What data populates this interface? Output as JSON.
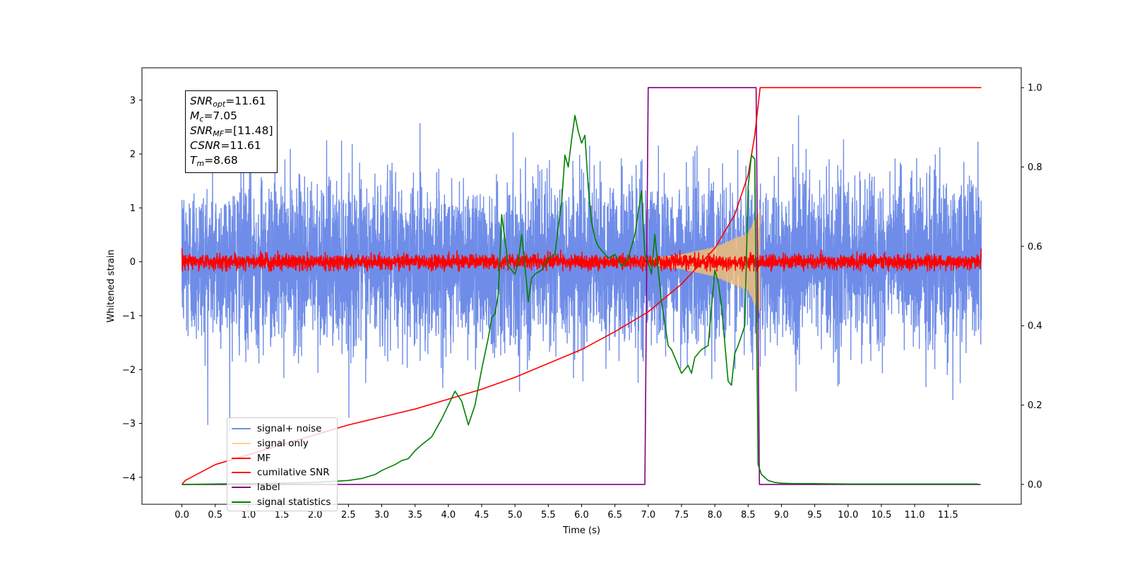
{
  "chart_data": {
    "type": "line",
    "xlabel": "Time (s)",
    "ylabel": "Whitened strain",
    "xlim": [
      -0.6,
      12.6
    ],
    "ylim": [
      -4.5,
      3.6
    ],
    "y2lim": [
      -0.05,
      1.05
    ],
    "x_ticks": [
      0.0,
      0.5,
      1.0,
      1.5,
      2.0,
      2.5,
      3.0,
      3.5,
      4.0,
      4.5,
      5.0,
      5.5,
      6.0,
      6.5,
      7.0,
      7.5,
      8.0,
      8.5,
      9.0,
      9.5,
      10.0,
      10.5,
      11.0,
      11.5
    ],
    "x_tick_labels": [
      "0.0",
      "0.5",
      "1.0",
      "1.5",
      "2.0",
      "2.5",
      "3.0",
      "3.5",
      "4.0",
      "4.5",
      "5.0",
      "5.5",
      "6.0",
      "6.5",
      "7.0",
      "7.5",
      "8.0",
      "8.5",
      "9.0",
      "9.5",
      "10.0",
      "10.5",
      "11.0",
      "11.5"
    ],
    "y_ticks": [
      3,
      2,
      1,
      0,
      -1,
      -2,
      -3,
      -4
    ],
    "y_tick_labels": [
      "3",
      "2",
      "1",
      "0",
      "−1",
      "−2",
      "−3",
      "−4"
    ],
    "y2_ticks": [
      1.0,
      0.8,
      0.6,
      0.4,
      0.2,
      0.0
    ],
    "y2_tick_labels": [
      "1.0",
      "0.8",
      "0.6",
      "0.4",
      "0.2",
      "0.0"
    ],
    "annotation": [
      {
        "sym": "SNR",
        "sub": "opt",
        "value": "=11.61"
      },
      {
        "sym": "M",
        "sub": "c",
        "value": "=7.05"
      },
      {
        "sym": "SNR",
        "sub": "MF",
        "value": "=[11.48]"
      },
      {
        "sym": "CSNR",
        "sub": "",
        "value": "=11.61"
      },
      {
        "sym": "T",
        "sub": "m",
        "value": "=8.68"
      }
    ],
    "legend_position": "lower-left",
    "series": [
      {
        "name": "signal+ noise",
        "color": "#6f8de8",
        "axis": "left",
        "kind": "noise",
        "x_range": [
          0.0,
          12.0
        ],
        "amplitude_sigma": 0.75,
        "ylim_clip": [
          -3.2,
          3.25
        ]
      },
      {
        "name": "signal only",
        "color": "#ffc469",
        "axis": "left",
        "kind": "chirp",
        "x_range": [
          6.5,
          8.68
        ],
        "envelope": {
          "x": [
            6.5,
            7.0,
            7.5,
            8.0,
            8.5,
            8.68
          ],
          "y": [
            0.02,
            0.06,
            0.14,
            0.28,
            0.55,
            1.0
          ]
        }
      },
      {
        "name": "MF",
        "color": "#ff0000",
        "axis": "left",
        "kind": "noise",
        "x_range": [
          0.0,
          12.0
        ],
        "amplitude_sigma": 0.07,
        "end_spikes": [
          1.0,
          0.9
        ]
      },
      {
        "name": "cumilative SNR",
        "color": "#ff0000",
        "axis": "right",
        "x": [
          0.0,
          0.05,
          0.5,
          1.0,
          1.5,
          2.0,
          2.5,
          3.0,
          3.5,
          4.0,
          4.5,
          5.0,
          5.5,
          6.0,
          6.5,
          7.0,
          7.5,
          8.0,
          8.3,
          8.5,
          8.6,
          8.68,
          9.0,
          12.0
        ],
        "y": [
          0.0,
          0.01,
          0.05,
          0.075,
          0.1,
          0.125,
          0.15,
          0.17,
          0.19,
          0.215,
          0.24,
          0.27,
          0.305,
          0.34,
          0.385,
          0.435,
          0.505,
          0.595,
          0.68,
          0.78,
          0.88,
          1.0,
          1.0,
          1.0
        ]
      },
      {
        "name": "label",
        "color": "#800080",
        "axis": "right",
        "x": [
          0.0,
          6.95,
          7.0,
          8.62,
          8.67,
          11.99
        ],
        "y": [
          0.0,
          0.0,
          1.0,
          1.0,
          0.0,
          0.0
        ]
      },
      {
        "name": "signal statistics",
        "color": "#008000",
        "axis": "right",
        "x": [
          0.0,
          0.5,
          1.0,
          1.5,
          2.0,
          2.5,
          2.7,
          2.9,
          3.0,
          3.2,
          3.3,
          3.4,
          3.5,
          3.6,
          3.75,
          3.9,
          4.0,
          4.1,
          4.2,
          4.3,
          4.4,
          4.5,
          4.6,
          4.65,
          4.7,
          4.75,
          4.8,
          4.9,
          5.0,
          5.05,
          5.1,
          5.15,
          5.2,
          5.25,
          5.3,
          5.4,
          5.5,
          5.6,
          5.65,
          5.7,
          5.75,
          5.8,
          5.85,
          5.9,
          5.95,
          6.0,
          6.05,
          6.1,
          6.15,
          6.2,
          6.25,
          6.3,
          6.35,
          6.4,
          6.5,
          6.6,
          6.7,
          6.8,
          6.9,
          6.95,
          7.0,
          7.05,
          7.1,
          7.15,
          7.2,
          7.3,
          7.35,
          7.4,
          7.5,
          7.55,
          7.6,
          7.65,
          7.7,
          7.8,
          7.9,
          8.0,
          8.05,
          8.1,
          8.2,
          8.25,
          8.3,
          8.35,
          8.45,
          8.5,
          8.55,
          8.6,
          8.65,
          8.7,
          8.8,
          8.9,
          9.0,
          9.2,
          9.5,
          10.0,
          10.5,
          11.0,
          11.5,
          11.95
        ],
        "y": [
          0.0,
          0.001,
          0.002,
          0.003,
          0.005,
          0.01,
          0.015,
          0.025,
          0.035,
          0.05,
          0.06,
          0.065,
          0.085,
          0.1,
          0.12,
          0.165,
          0.2,
          0.235,
          0.21,
          0.15,
          0.2,
          0.29,
          0.37,
          0.42,
          0.43,
          0.48,
          0.68,
          0.55,
          0.53,
          0.56,
          0.63,
          0.55,
          0.46,
          0.52,
          0.53,
          0.54,
          0.57,
          0.58,
          0.65,
          0.71,
          0.83,
          0.8,
          0.87,
          0.93,
          0.89,
          0.86,
          0.88,
          0.75,
          0.66,
          0.62,
          0.6,
          0.59,
          0.58,
          0.57,
          0.58,
          0.55,
          0.57,
          0.63,
          0.74,
          0.58,
          0.56,
          0.53,
          0.63,
          0.54,
          0.46,
          0.35,
          0.34,
          0.32,
          0.28,
          0.29,
          0.3,
          0.28,
          0.32,
          0.34,
          0.35,
          0.54,
          0.51,
          0.45,
          0.26,
          0.25,
          0.33,
          0.35,
          0.4,
          0.75,
          0.83,
          0.82,
          0.05,
          0.025,
          0.01,
          0.005,
          0.003,
          0.002,
          0.002,
          0.001,
          0.001,
          0.001,
          0.001,
          0.001
        ]
      }
    ]
  }
}
